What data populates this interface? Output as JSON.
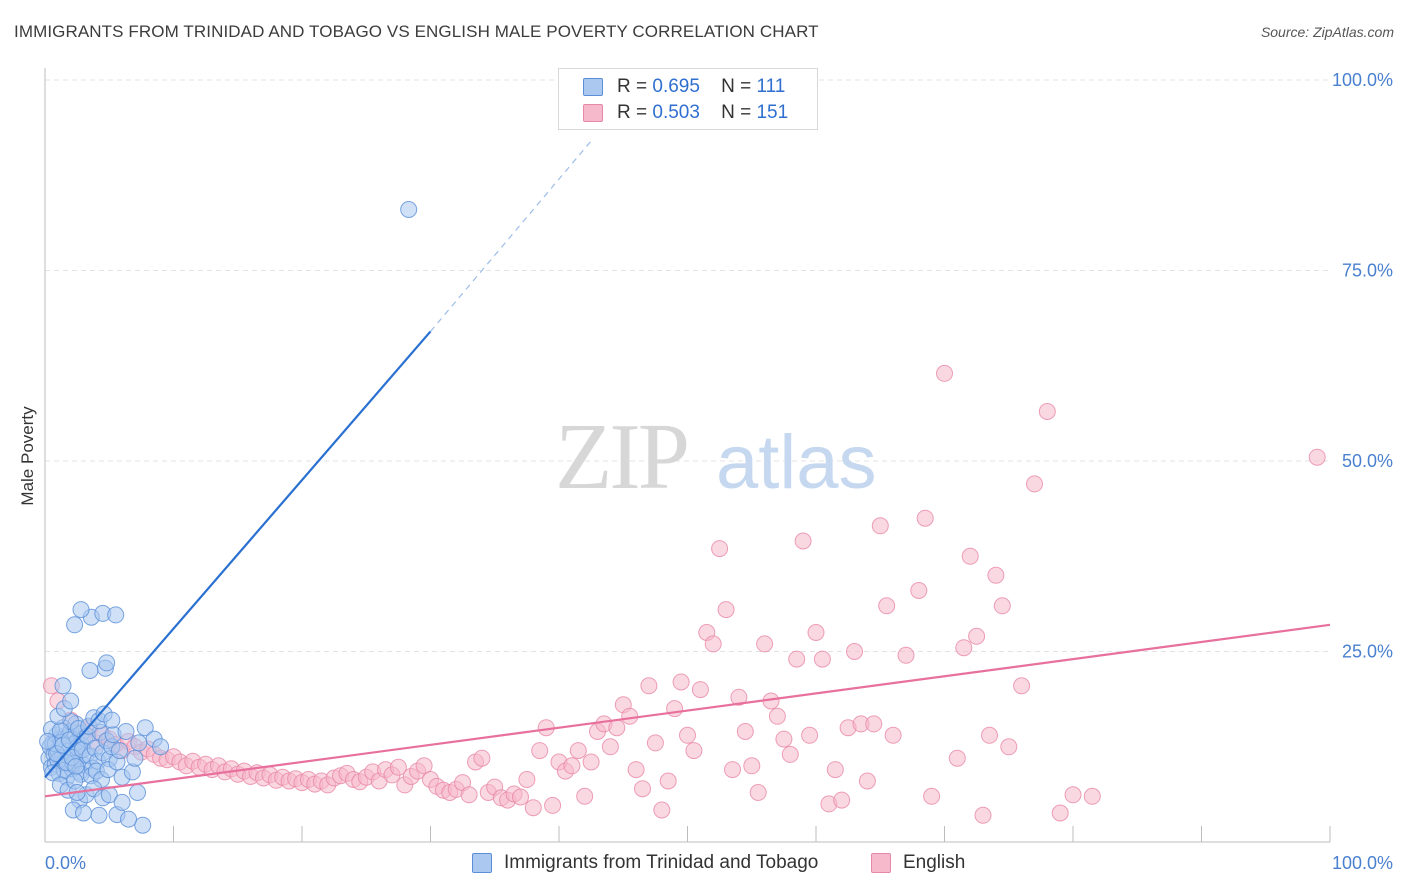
{
  "header": {
    "title": "IMMIGRANTS FROM TRINIDAD AND TOBAGO VS ENGLISH MALE POVERTY CORRELATION CHART",
    "source": "Source: ZipAtlas.com"
  },
  "watermark": {
    "part1": "ZIP",
    "part2": "atlas"
  },
  "legend": {
    "rows": [
      {
        "r_label": "R =",
        "r_value": "0.695",
        "n_label": "N =",
        "n_value": "111"
      },
      {
        "r_label": "R =",
        "r_value": "0.503",
        "n_label": "N =",
        "n_value": "151"
      }
    ]
  },
  "bottom_legend": {
    "items": [
      {
        "label": "Immigrants from Trinidad and Tobago"
      },
      {
        "label": "English"
      }
    ]
  },
  "colors": {
    "blue_fill": "#aac8f0",
    "blue_stroke": "#5a8fd8",
    "blue_line": "#2a70d0",
    "pink_fill": "#f6b8cb",
    "pink_stroke": "#e888a8",
    "pink_line": "#e8709c",
    "axis_text": "#4a80d0",
    "grid": "#e3e3e3"
  },
  "chart_data": {
    "type": "scatter",
    "title": "IMMIGRANTS FROM TRINIDAD AND TOBAGO VS ENGLISH MALE POVERTY CORRELATION CHART",
    "xlabel": "",
    "ylabel": "Male Poverty",
    "xlim": [
      0,
      100
    ],
    "ylim": [
      0,
      100
    ],
    "x_tick_labels": [
      "0.0%",
      "100.0%"
    ],
    "y_tick_labels": [
      "25.0%",
      "50.0%",
      "75.0%",
      "100.0%"
    ],
    "y_ticks": [
      25,
      50,
      75,
      100
    ],
    "x_minor_ticks": [
      10,
      20,
      30,
      40,
      50,
      60,
      70,
      80,
      90,
      100
    ],
    "series": [
      {
        "name": "Immigrants from Trinidad and Tobago",
        "color_key": "blue",
        "r": 0.695,
        "n": 111,
        "trend": {
          "x0": 0,
          "y0": 8.5,
          "x1": 30,
          "y1": 67,
          "dash_x1": 42.5,
          "dash_y1": 92
        },
        "points": [
          [
            0.3,
            11
          ],
          [
            0.4,
            12.5
          ],
          [
            0.5,
            9.8
          ],
          [
            0.6,
            13
          ],
          [
            0.7,
            11.5
          ],
          [
            0.8,
            10.2
          ],
          [
            0.9,
            14
          ],
          [
            1.0,
            12
          ],
          [
            1.1,
            9
          ],
          [
            1.2,
            13.5
          ],
          [
            1.3,
            11
          ],
          [
            1.4,
            15
          ],
          [
            1.5,
            10.5
          ],
          [
            1.6,
            12.2
          ],
          [
            1.7,
            8.5
          ],
          [
            1.8,
            13.8
          ],
          [
            1.9,
            11.2
          ],
          [
            2.0,
            14.5
          ],
          [
            2.1,
            9.6
          ],
          [
            2.2,
            12.8
          ],
          [
            2.3,
            10.8
          ],
          [
            2.4,
            15.5
          ],
          [
            2.5,
            13.2
          ],
          [
            2.6,
            11.8
          ],
          [
            2.7,
            9.2
          ],
          [
            2.8,
            14.2
          ],
          [
            2.9,
            12.6
          ],
          [
            3.0,
            10.1
          ],
          [
            3.1,
            13.6
          ],
          [
            3.2,
            11.4
          ],
          [
            0.5,
            14.8
          ],
          [
            0.8,
            12.9
          ],
          [
            1.0,
            10.7
          ],
          [
            1.3,
            13.1
          ],
          [
            1.5,
            9.4
          ],
          [
            1.8,
            11.9
          ],
          [
            2.0,
            15.8
          ],
          [
            2.2,
            10.3
          ],
          [
            2.5,
            12.4
          ],
          [
            2.8,
            8.9
          ],
          [
            0.6,
            9.1
          ],
          [
            0.9,
            11.6
          ],
          [
            1.2,
            14.6
          ],
          [
            1.4,
            12.7
          ],
          [
            1.7,
            10.4
          ],
          [
            1.9,
            13.4
          ],
          [
            2.1,
            11.1
          ],
          [
            2.4,
            9.9
          ],
          [
            2.6,
            14.9
          ],
          [
            2.9,
            12.1
          ],
          [
            3.3,
            13.9
          ],
          [
            3.5,
            11.3
          ],
          [
            3.7,
            9.7
          ],
          [
            3.9,
            12.3
          ],
          [
            4.1,
            10.6
          ],
          [
            4.3,
            14.4
          ],
          [
            4.5,
            11.7
          ],
          [
            4.8,
            13.3
          ],
          [
            5.0,
            10.9
          ],
          [
            5.2,
            12.5
          ],
          [
            3.4,
            15.2
          ],
          [
            3.6,
            8.7
          ],
          [
            3.8,
            16.3
          ],
          [
            4.0,
            9.3
          ],
          [
            4.2,
            15.9
          ],
          [
            4.4,
            8.2
          ],
          [
            4.6,
            16.8
          ],
          [
            4.9,
            9.5
          ],
          [
            5.3,
            14.1
          ],
          [
            5.6,
            10.5
          ],
          [
            1.0,
            16.5
          ],
          [
            1.5,
            17.5
          ],
          [
            2.0,
            18.5
          ],
          [
            1.2,
            7.5
          ],
          [
            1.8,
            6.8
          ],
          [
            2.3,
            8
          ],
          [
            2.7,
            5.5
          ],
          [
            3.2,
            6.2
          ],
          [
            3.8,
            7
          ],
          [
            4.5,
            5.8
          ],
          [
            2.2,
            4.2
          ],
          [
            3.0,
            3.8
          ],
          [
            4.2,
            3.5
          ],
          [
            5.6,
            3.6
          ],
          [
            2.5,
            6.5
          ],
          [
            5.0,
            6.2
          ],
          [
            6.0,
            5.2
          ],
          [
            7.2,
            6.5
          ],
          [
            7.6,
            2.2
          ],
          [
            6.5,
            3
          ],
          [
            1.4,
            20.5
          ],
          [
            3.5,
            22.5
          ],
          [
            4.7,
            22.8
          ],
          [
            4.8,
            23.5
          ],
          [
            2.3,
            28.5
          ],
          [
            3.6,
            29.5
          ],
          [
            4.5,
            30
          ],
          [
            5.5,
            29.8
          ],
          [
            2.8,
            30.5
          ],
          [
            5.2,
            16
          ],
          [
            6.0,
            8.5
          ],
          [
            6.8,
            9.2
          ],
          [
            7.3,
            13
          ],
          [
            7.8,
            15
          ],
          [
            8.5,
            13.5
          ],
          [
            9.0,
            12.5
          ],
          [
            7.0,
            11
          ],
          [
            6.3,
            14.5
          ],
          [
            5.8,
            12
          ],
          [
            28.3,
            83
          ],
          [
            0.2,
            13.2
          ]
        ]
      },
      {
        "name": "English",
        "color_key": "pink",
        "r": 0.503,
        "n": 151,
        "trend": {
          "x0": 0,
          "y0": 6,
          "x1": 100,
          "y1": 28.5
        },
        "points": [
          [
            0.5,
            20.5
          ],
          [
            1.0,
            18.5
          ],
          [
            2.0,
            16
          ],
          [
            3.0,
            14.5
          ],
          [
            3.5,
            15
          ],
          [
            4.0,
            13
          ],
          [
            4.5,
            14
          ],
          [
            5.0,
            13.5
          ],
          [
            5.5,
            12.8
          ],
          [
            6.0,
            12
          ],
          [
            6.5,
            13.2
          ],
          [
            7.0,
            12.5
          ],
          [
            7.5,
            11.8
          ],
          [
            8.0,
            12.2
          ],
          [
            8.5,
            11.5
          ],
          [
            9.0,
            11
          ],
          [
            9.5,
            10.8
          ],
          [
            10.0,
            11.2
          ],
          [
            10.5,
            10.5
          ],
          [
            11.0,
            10
          ],
          [
            11.5,
            10.6
          ],
          [
            12.0,
            9.8
          ],
          [
            12.5,
            10.2
          ],
          [
            13.0,
            9.5
          ],
          [
            13.5,
            10
          ],
          [
            14.0,
            9.2
          ],
          [
            14.5,
            9.6
          ],
          [
            15.0,
            8.9
          ],
          [
            15.5,
            9.3
          ],
          [
            16.0,
            8.6
          ],
          [
            16.5,
            9.1
          ],
          [
            17.0,
            8.4
          ],
          [
            17.5,
            8.8
          ],
          [
            18.0,
            8.1
          ],
          [
            18.5,
            8.5
          ],
          [
            19.0,
            8
          ],
          [
            19.5,
            8.3
          ],
          [
            20.0,
            7.8
          ],
          [
            20.5,
            8.2
          ],
          [
            21.0,
            7.6
          ],
          [
            21.5,
            8
          ],
          [
            22.0,
            7.5
          ],
          [
            22.5,
            8.4
          ],
          [
            23.0,
            8.7
          ],
          [
            23.5,
            9
          ],
          [
            24.0,
            8.2
          ],
          [
            24.5,
            7.9
          ],
          [
            25.0,
            8.5
          ],
          [
            25.5,
            9.2
          ],
          [
            26.0,
            8
          ],
          [
            26.5,
            9.5
          ],
          [
            27.0,
            8.8
          ],
          [
            27.5,
            9.8
          ],
          [
            28.0,
            7.5
          ],
          [
            28.5,
            8.6
          ],
          [
            29.0,
            9.3
          ],
          [
            29.5,
            10
          ],
          [
            30.0,
            8.2
          ],
          [
            30.5,
            7.3
          ],
          [
            31.0,
            6.8
          ],
          [
            31.5,
            6.5
          ],
          [
            32.0,
            6.9
          ],
          [
            32.5,
            7.8
          ],
          [
            33.0,
            6.2
          ],
          [
            33.5,
            10.5
          ],
          [
            34.0,
            11
          ],
          [
            34.5,
            6.5
          ],
          [
            35.0,
            7.2
          ],
          [
            35.5,
            5.8
          ],
          [
            36.0,
            5.5
          ],
          [
            36.5,
            6.3
          ],
          [
            37.0,
            5.9
          ],
          [
            37.5,
            8.2
          ],
          [
            38.0,
            4.5
          ],
          [
            38.5,
            12
          ],
          [
            39.0,
            15
          ],
          [
            39.5,
            4.8
          ],
          [
            40.0,
            10.5
          ],
          [
            40.5,
            9.3
          ],
          [
            41.0,
            10
          ],
          [
            41.5,
            12
          ],
          [
            42.0,
            6
          ],
          [
            42.5,
            10.5
          ],
          [
            43.0,
            14.5
          ],
          [
            43.5,
            15.5
          ],
          [
            44.0,
            12.5
          ],
          [
            44.5,
            15
          ],
          [
            45.0,
            18
          ],
          [
            45.5,
            16.5
          ],
          [
            46.0,
            9.5
          ],
          [
            46.5,
            7
          ],
          [
            47.0,
            20.5
          ],
          [
            47.5,
            13
          ],
          [
            48.0,
            4.2
          ],
          [
            48.5,
            8
          ],
          [
            49.0,
            17.5
          ],
          [
            49.5,
            21
          ],
          [
            50.0,
            14
          ],
          [
            50.5,
            12
          ],
          [
            51.0,
            20
          ],
          [
            51.5,
            27.5
          ],
          [
            52.0,
            26
          ],
          [
            52.5,
            38.5
          ],
          [
            53.0,
            30.5
          ],
          [
            53.5,
            9.5
          ],
          [
            54.0,
            19
          ],
          [
            54.5,
            14.5
          ],
          [
            55.0,
            10
          ],
          [
            55.5,
            6.5
          ],
          [
            56.0,
            26
          ],
          [
            56.5,
            18.5
          ],
          [
            57.0,
            16.5
          ],
          [
            57.5,
            13.5
          ],
          [
            58.0,
            11.5
          ],
          [
            58.5,
            24
          ],
          [
            59.0,
            39.5
          ],
          [
            59.5,
            14
          ],
          [
            60.0,
            27.5
          ],
          [
            60.5,
            24
          ],
          [
            61.0,
            5
          ],
          [
            61.5,
            9.5
          ],
          [
            62.0,
            5.5
          ],
          [
            62.5,
            15
          ],
          [
            63.0,
            25
          ],
          [
            63.5,
            15.5
          ],
          [
            64.0,
            8
          ],
          [
            64.5,
            15.5
          ],
          [
            65.0,
            41.5
          ],
          [
            65.5,
            31
          ],
          [
            66.0,
            14
          ],
          [
            67.0,
            24.5
          ],
          [
            68.0,
            33
          ],
          [
            68.5,
            42.5
          ],
          [
            69.0,
            6
          ],
          [
            70.0,
            61.5
          ],
          [
            71.0,
            11
          ],
          [
            71.5,
            25.5
          ],
          [
            72.0,
            37.5
          ],
          [
            72.5,
            27
          ],
          [
            73.0,
            3.5
          ],
          [
            73.5,
            14
          ],
          [
            74.0,
            35
          ],
          [
            74.5,
            31
          ],
          [
            75.0,
            12.5
          ],
          [
            76.0,
            20.5
          ],
          [
            77.0,
            47
          ],
          [
            78.0,
            56.5
          ],
          [
            79.0,
            3.8
          ],
          [
            80.0,
            6.2
          ],
          [
            81.5,
            6
          ],
          [
            99.0,
            50.5
          ]
        ]
      }
    ]
  }
}
